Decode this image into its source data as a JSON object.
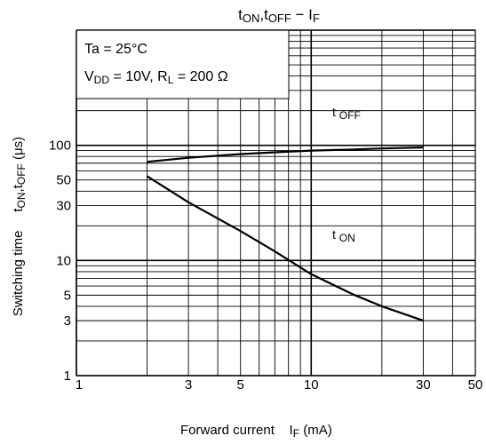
{
  "chart_data": {
    "type": "line",
    "title": {
      "main": "t",
      "sub1": "ON",
      "mid": ",t",
      "sub2": "OFF",
      "dash": " − I",
      "sub3": "F"
    },
    "xlabel": {
      "main": "Forward current",
      "sym": "I",
      "sub": "F",
      "unit": " (mA)"
    },
    "ylabel": {
      "main": "Switching time",
      "sym": "t",
      "sub1": "ON",
      "mid": ",t",
      "sub2": "OFF",
      "unit": " (μs)"
    },
    "x_scale": "log",
    "y_scale": "log",
    "xlim": [
      1,
      50
    ],
    "ylim": [
      1,
      1000
    ],
    "x_ticks": [
      {
        "v": 1,
        "label": "1"
      },
      {
        "v": 3,
        "label": "3"
      },
      {
        "v": 5,
        "label": "5"
      },
      {
        "v": 10,
        "label": "10"
      },
      {
        "v": 30,
        "label": "30"
      },
      {
        "v": 50,
        "label": "50"
      }
    ],
    "y_ticks": [
      {
        "v": 1,
        "label": "1"
      },
      {
        "v": 3,
        "label": "3"
      },
      {
        "v": 5,
        "label": "5"
      },
      {
        "v": 10,
        "label": "10"
      },
      {
        "v": 30,
        "label": "30"
      },
      {
        "v": 50,
        "label": "50"
      },
      {
        "v": 100,
        "label": "100"
      }
    ],
    "x_grid": [
      1,
      2,
      3,
      4,
      5,
      6,
      7,
      8,
      9,
      10,
      20,
      30,
      40,
      50
    ],
    "y_grid": [
      1,
      2,
      3,
      4,
      5,
      6,
      7,
      8,
      9,
      10,
      20,
      30,
      40,
      50,
      60,
      70,
      80,
      90,
      100,
      200,
      300,
      400,
      500,
      600,
      700,
      800,
      900,
      1000
    ],
    "grid": true,
    "conditions": {
      "line1": {
        "main": "Ta = 25",
        "unit": "°C"
      },
      "line2": {
        "a": "V",
        "a_sub": "DD",
        "b": " = 10V, R",
        "b_sub": "L",
        "c": " = 200 Ω"
      }
    },
    "series": [
      {
        "name": {
          "main": "t ",
          "sub": "OFF"
        },
        "x": [
          2,
          3,
          5,
          7,
          10,
          15,
          20,
          30
        ],
        "y": [
          72,
          78,
          84,
          87,
          90,
          92,
          94,
          96
        ]
      },
      {
        "name": {
          "main": "t ",
          "sub": "ON"
        },
        "x": [
          2,
          3,
          5,
          7,
          10,
          15,
          20,
          30
        ],
        "y": [
          54,
          32,
          18,
          12,
          7.6,
          5.1,
          4.0,
          3.0
        ]
      }
    ]
  }
}
